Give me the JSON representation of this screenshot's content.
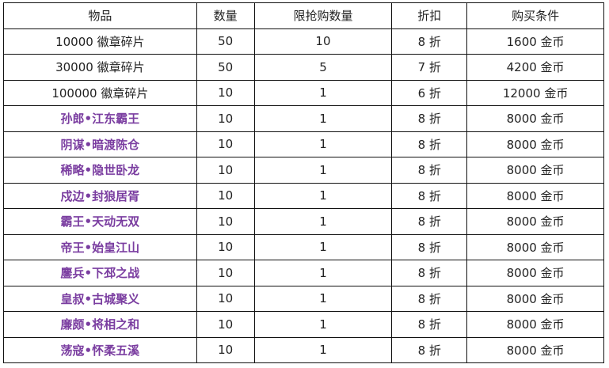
{
  "table": {
    "headers": [
      "物品",
      "数量",
      "限抢购数量",
      "折扣",
      "购买条件"
    ],
    "highlight_color": "#7a3da0",
    "rows": [
      {
        "item": "10000 徽章碎片",
        "qty": "50",
        "limit": "10",
        "discount": "8 折",
        "cond": "1600 金币",
        "highlight": false
      },
      {
        "item": "30000 徽章碎片",
        "qty": "50",
        "limit": "5",
        "discount": "7 折",
        "cond": "4200 金币",
        "highlight": false
      },
      {
        "item": "100000 徽章碎片",
        "qty": "10",
        "limit": "1",
        "discount": "6 折",
        "cond": "12000 金币",
        "highlight": false
      },
      {
        "item": "孙郎•江东霸王",
        "qty": "10",
        "limit": "1",
        "discount": "8 折",
        "cond": "8000 金币",
        "highlight": true
      },
      {
        "item": "阴谋•暗渡陈仓",
        "qty": "10",
        "limit": "1",
        "discount": "8 折",
        "cond": "8000 金币",
        "highlight": true
      },
      {
        "item": "稀略•隐世卧龙",
        "qty": "10",
        "limit": "1",
        "discount": "8 折",
        "cond": "8000 金币",
        "highlight": true
      },
      {
        "item": "戍边•封狼居胥",
        "qty": "10",
        "limit": "1",
        "discount": "8 折",
        "cond": "8000 金币",
        "highlight": true
      },
      {
        "item": "霸王•天动无双",
        "qty": "10",
        "limit": "1",
        "discount": "8 折",
        "cond": "8000 金币",
        "highlight": true
      },
      {
        "item": "帝王•始皇江山",
        "qty": "10",
        "limit": "1",
        "discount": "8 折",
        "cond": "8000 金币",
        "highlight": true
      },
      {
        "item": "鏖兵•下邳之战",
        "qty": "10",
        "limit": "1",
        "discount": "8 折",
        "cond": "8000 金币",
        "highlight": true
      },
      {
        "item": "皇叔•古城聚义",
        "qty": "10",
        "limit": "1",
        "discount": "8 折",
        "cond": "8000 金币",
        "highlight": true
      },
      {
        "item": "廉颇•将相之和",
        "qty": "10",
        "limit": "1",
        "discount": "8 折",
        "cond": "8000 金币",
        "highlight": true
      },
      {
        "item": "荡寇•怀柔五溪",
        "qty": "10",
        "limit": "1",
        "discount": "8 折",
        "cond": "8000 金币",
        "highlight": true
      }
    ]
  }
}
